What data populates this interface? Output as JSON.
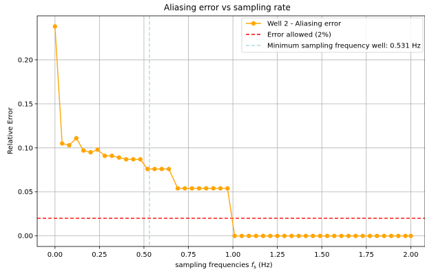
{
  "chart_data": {
    "type": "line",
    "title": "Aliasing error vs sampling rate",
    "xlabel_main": "sampling frequencies ",
    "xlabel_sym": "f",
    "xlabel_sub": "s",
    "xlabel_unit": " (Hz)",
    "ylabel": "Relative Error",
    "xlim": [
      -0.1,
      2.08
    ],
    "ylim": [
      -0.012,
      0.25
    ],
    "xticks": [
      0.0,
      0.25,
      0.5,
      0.75,
      1.0,
      1.25,
      1.5,
      1.75,
      2.0
    ],
    "xtick_labels": [
      "0.00",
      "0.25",
      "0.50",
      "0.75",
      "1.00",
      "1.25",
      "1.50",
      "1.75",
      "2.00"
    ],
    "yticks": [
      0.0,
      0.05,
      0.1,
      0.15,
      0.2
    ],
    "ytick_labels": [
      "0.00",
      "0.05",
      "0.10",
      "0.15",
      "0.20"
    ],
    "grid": true,
    "legend_position": "top-right",
    "series": [
      {
        "name": "Well 2 - Aliasing error",
        "color": "#ffa500",
        "marker": "circle",
        "x": [
          0.0,
          0.04,
          0.08,
          0.12,
          0.16,
          0.2,
          0.24,
          0.28,
          0.32,
          0.36,
          0.4,
          0.44,
          0.48,
          0.52,
          0.56,
          0.6,
          0.64,
          0.69,
          0.73,
          0.77,
          0.81,
          0.85,
          0.89,
          0.93,
          0.97,
          1.01,
          1.05,
          1.09,
          1.13,
          1.17,
          1.21,
          1.25,
          1.29,
          1.33,
          1.37,
          1.41,
          1.45,
          1.49,
          1.53,
          1.57,
          1.61,
          1.65,
          1.69,
          1.73,
          1.77,
          1.81,
          1.85,
          1.89,
          1.93,
          1.97,
          2.0
        ],
        "y": [
          0.238,
          0.105,
          0.103,
          0.111,
          0.097,
          0.095,
          0.098,
          0.091,
          0.091,
          0.089,
          0.087,
          0.087,
          0.087,
          0.076,
          0.076,
          0.076,
          0.076,
          0.054,
          0.054,
          0.054,
          0.054,
          0.054,
          0.054,
          0.054,
          0.054,
          0.0,
          0.0,
          0.0,
          0.0,
          0.0,
          0.0,
          0.0,
          0.0,
          0.0,
          0.0,
          0.0,
          0.0,
          0.0,
          0.0,
          0.0,
          0.0,
          0.0,
          0.0,
          0.0,
          0.0,
          0.0,
          0.0,
          0.0,
          0.0,
          0.0,
          0.0
        ]
      }
    ],
    "reference_lines": [
      {
        "name": "Error allowed (2%)",
        "orientation": "horizontal",
        "value": 0.02,
        "color": "#ff0000",
        "style": "dashed"
      },
      {
        "name": "Minimum sampling frequency well: 0.531 Hz",
        "orientation": "vertical",
        "value": 0.531,
        "color": "#add8e6",
        "style": "dashed"
      }
    ]
  }
}
